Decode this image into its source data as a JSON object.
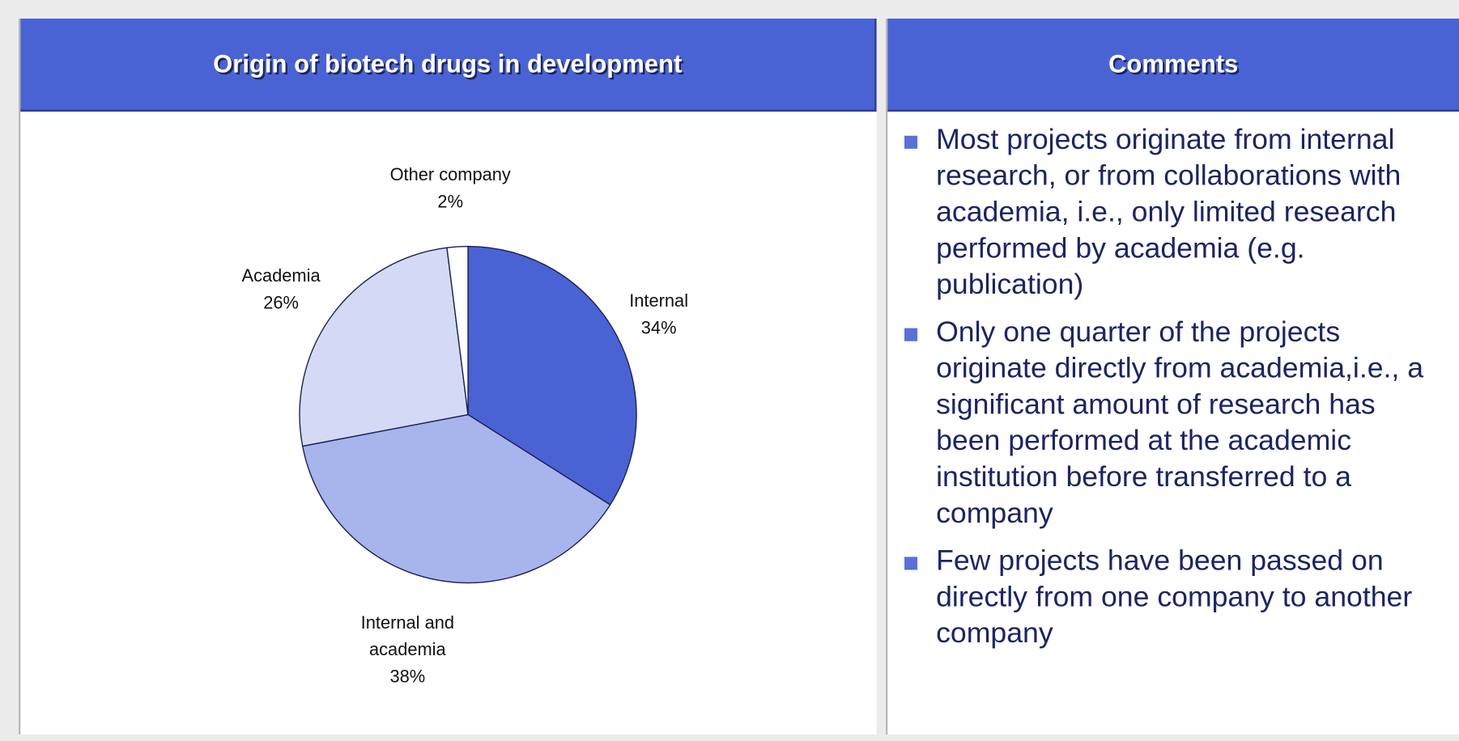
{
  "chart_data": {
    "type": "pie",
    "title": "Origin of biotech drugs in development",
    "categories": [
      "Internal",
      "Internal and academia",
      "Academia",
      "Other company"
    ],
    "values": [
      34,
      38,
      26,
      2
    ],
    "value_labels": [
      "34%",
      "38%",
      "26%",
      "2%"
    ],
    "colors": [
      "#4a63d4",
      "#a8b4ec",
      "#d4daf5",
      "#ffffff"
    ]
  },
  "comments": {
    "title": "Comments",
    "items": [
      "Most projects originate from internal research, or from collaborations with academia, i.e., only limited research performed by academia (e.g. publication)",
      "Only one quarter of the projects originate directly from academia,i.e., a significant amount of research has been performed at the academic institution before transferred to a company",
      "Few projects have been passed on directly from one company to another company"
    ]
  }
}
